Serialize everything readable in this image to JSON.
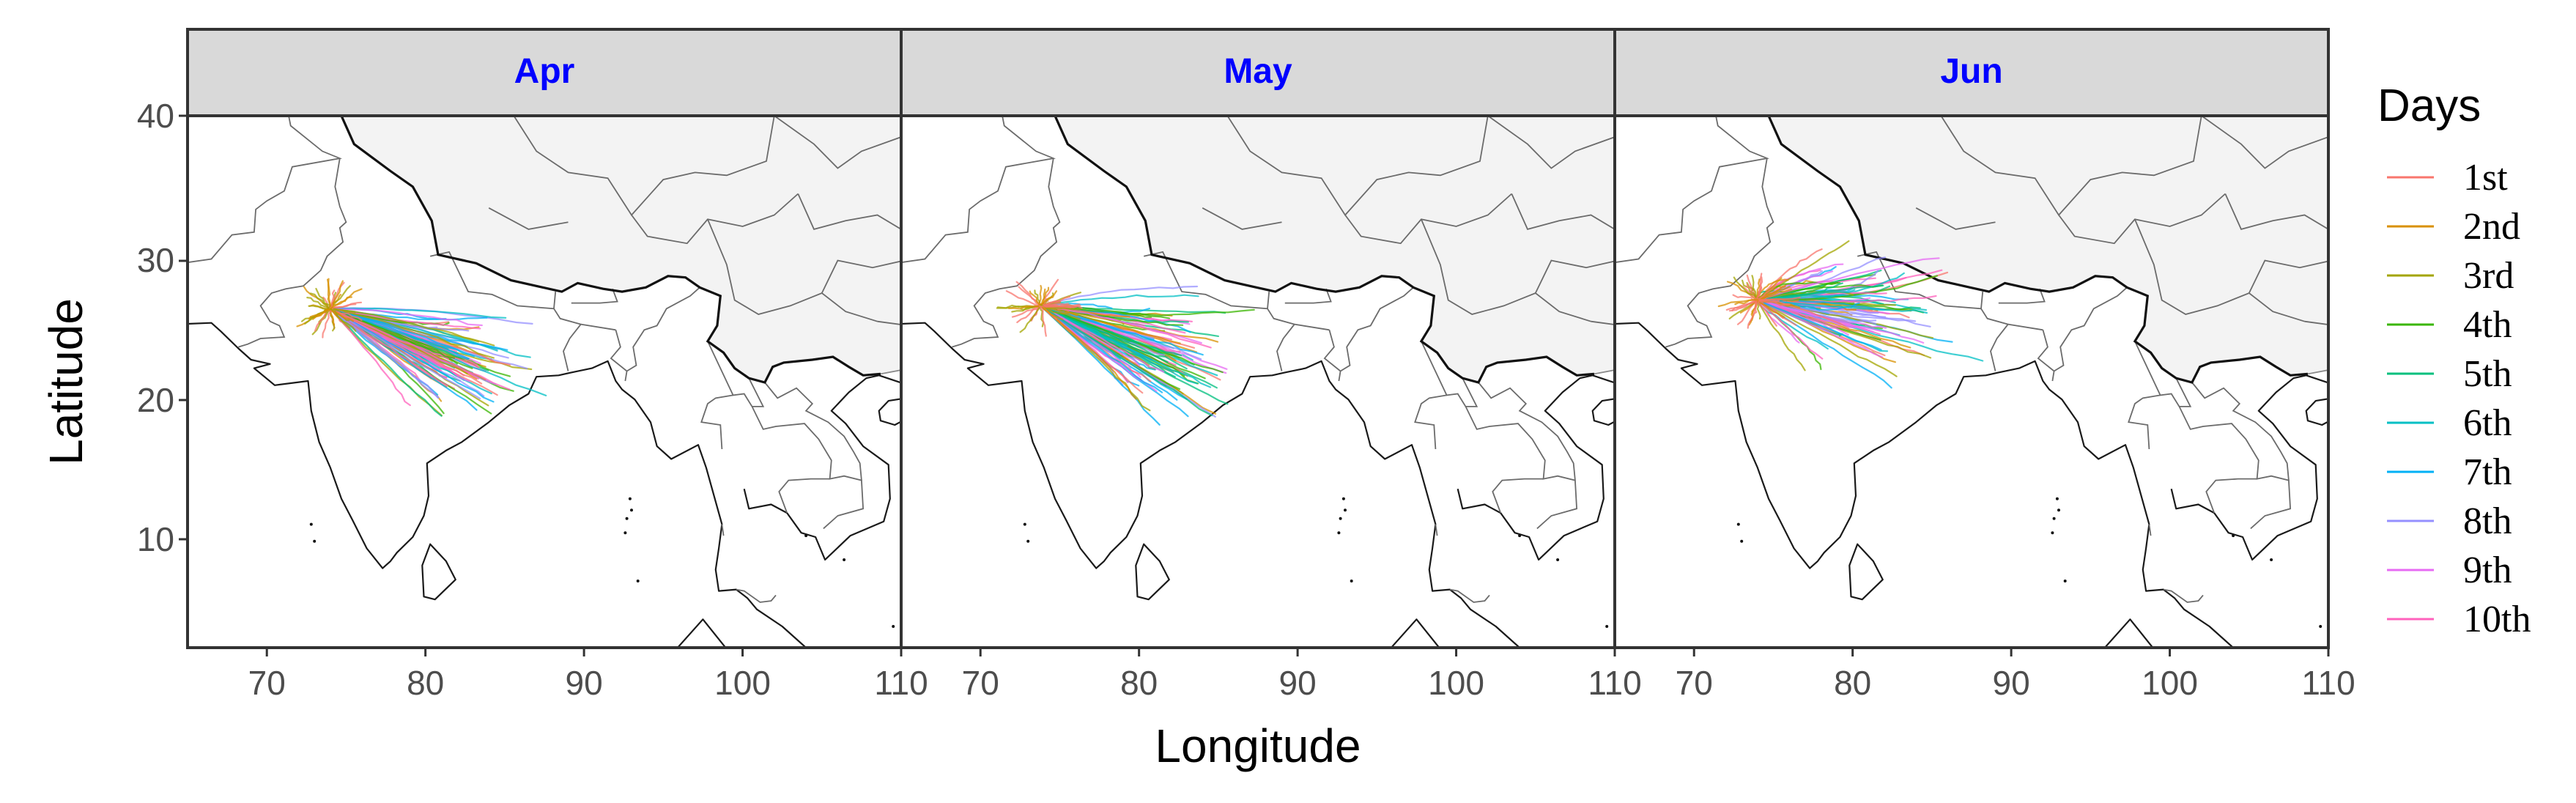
{
  "chart_data": {
    "type": "line",
    "title": "",
    "xlabel": "Longitude",
    "ylabel": "Latitude",
    "xlim": [
      65,
      110
    ],
    "ylim": [
      2.5,
      40
    ],
    "x_ticks": [
      "70",
      "80",
      "90",
      "100",
      "110"
    ],
    "y_ticks": [
      "10",
      "20",
      "30",
      "40"
    ],
    "facets": [
      {
        "label": "Apr",
        "origin": [
          74.0,
          26.4
        ],
        "center": [
          83.0,
          22.2
        ],
        "spread": [
          5.5,
          5.0
        ]
      },
      {
        "label": "May",
        "origin": [
          73.8,
          26.6
        ],
        "center": [
          82.5,
          22.6
        ],
        "spread": [
          6.5,
          6.0
        ]
      },
      {
        "label": "Jun",
        "origin": [
          74.0,
          27.0
        ],
        "center": [
          81.0,
          26.5
        ],
        "spread": [
          8.0,
          6.0
        ]
      }
    ],
    "legend_title": "Days",
    "legend_position": "right",
    "series": [
      {
        "name": "1st",
        "color": "#F8766D"
      },
      {
        "name": "2nd",
        "color": "#D89000"
      },
      {
        "name": "3rd",
        "color": "#A3A500"
      },
      {
        "name": "4th",
        "color": "#39B600"
      },
      {
        "name": "5th",
        "color": "#00BF7D"
      },
      {
        "name": "6th",
        "color": "#00BFC4"
      },
      {
        "name": "7th",
        "color": "#00B0F6"
      },
      {
        "name": "8th",
        "color": "#9590FF"
      },
      {
        "name": "9th",
        "color": "#E76BF3"
      },
      {
        "name": "10th",
        "color": "#FF62BC"
      }
    ],
    "grid": false
  },
  "colors": {
    "strip_background": "#d9d9d9",
    "strip_text": "#0000ff",
    "panel_border": "#333333",
    "plateau_fill": "#f3f3f3"
  }
}
